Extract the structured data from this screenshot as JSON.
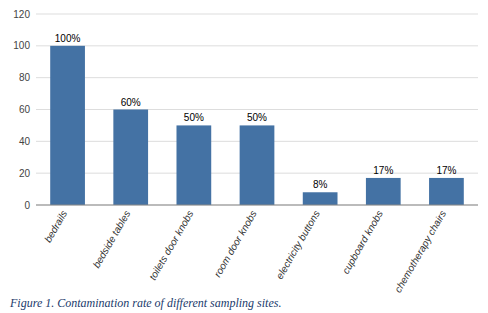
{
  "chart_data": {
    "type": "bar",
    "categories": [
      "bedrails",
      "bedside tables",
      "toilets door knobs",
      "room door knobs",
      "electricity buttons",
      "cupboard knobs",
      "chemotherapy chairs"
    ],
    "values": [
      100,
      60,
      50,
      50,
      8,
      17,
      17
    ],
    "value_labels": [
      "100%",
      "60%",
      "50%",
      "50%",
      "8%",
      "17%",
      "17%"
    ],
    "data_labels": true,
    "color": "#4472a4",
    "ylim": [
      0,
      120
    ],
    "yticks": [
      0,
      20,
      40,
      60,
      80,
      100,
      120
    ],
    "grid": true,
    "caption": "Figure 1. Contamination rate of different sampling sites."
  }
}
